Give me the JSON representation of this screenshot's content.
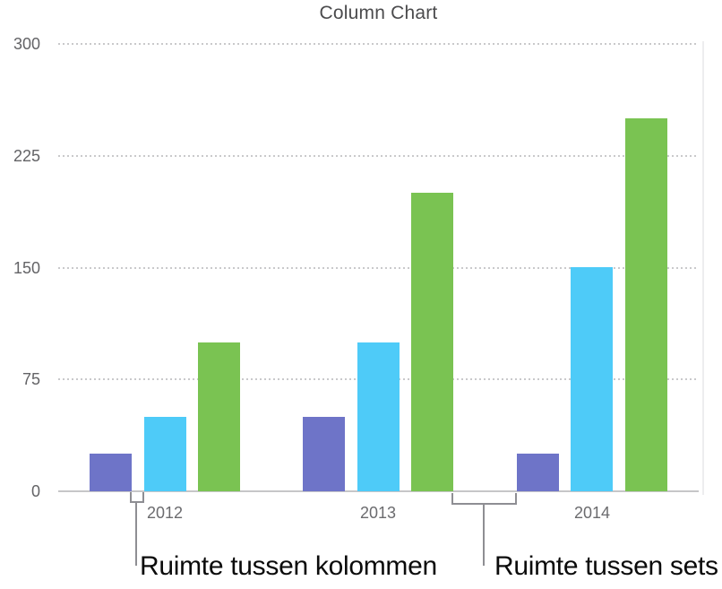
{
  "chart_data": {
    "type": "bar",
    "title": "Column Chart",
    "categories": [
      "2012",
      "2013",
      "2014"
    ],
    "series": [
      {
        "name": "purple-series",
        "color": "#6E74C8",
        "values": [
          25,
          50,
          25
        ]
      },
      {
        "name": "blue-series",
        "color": "#4ECBF8",
        "values": [
          50,
          100,
          150
        ]
      },
      {
        "name": "green-series",
        "color": "#7AC352",
        "values": [
          100,
          200,
          250
        ]
      }
    ],
    "yticks": [
      0,
      75,
      150,
      225,
      300
    ],
    "ylim": [
      0,
      300
    ],
    "xlabel": "",
    "ylabel": "",
    "grid": "horizontal-dotted",
    "legend": "none"
  },
  "annotations": {
    "column_gap_label": "Ruimte tussen kolommen",
    "set_gap_label": "Ruimte tussen sets"
  },
  "colors": {
    "title_text": "#4b4b4d",
    "tick_text": "#636366",
    "category_text": "#6b6b6e",
    "gridline": "#c9c9cb",
    "baseline": "#c6c6c8",
    "bracket": "#8e8e93",
    "annotation_text": "#0b0b0b",
    "background": "#ffffff"
  }
}
